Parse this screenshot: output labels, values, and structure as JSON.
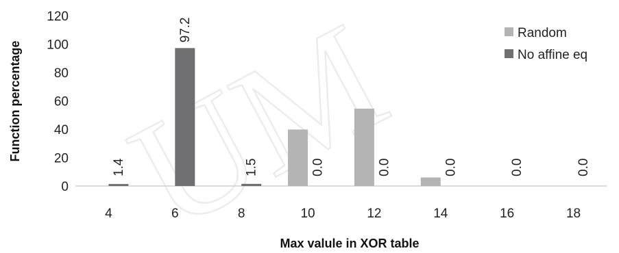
{
  "chart_data": {
    "type": "bar",
    "categories": [
      "4",
      "6",
      "8",
      "10",
      "12",
      "14",
      "16",
      "18"
    ],
    "series": [
      {
        "name": "Random",
        "values": [
          0,
          0,
          0,
          39.8,
          54.5,
          6.0,
          0,
          0
        ],
        "color": "#b4b4b4"
      },
      {
        "name": "No affine eq",
        "values": [
          1.4,
          97.2,
          1.5,
          0.0,
          0.0,
          0.0,
          0.0,
          0.0
        ],
        "color": "#6f6f71"
      }
    ],
    "data_labels": [
      "1.4",
      "97.2",
      "1.5",
      "0.0",
      "0.0",
      "0.0",
      "0.0",
      "0.0"
    ],
    "xlabel": "Max valule in XOR table",
    "ylabel": "Function percentage",
    "yticks": [
      0,
      20,
      40,
      60,
      80,
      100,
      120
    ],
    "ylim": [
      0,
      120
    ],
    "grid": false,
    "legend": "top-right",
    "watermark": "UM"
  }
}
